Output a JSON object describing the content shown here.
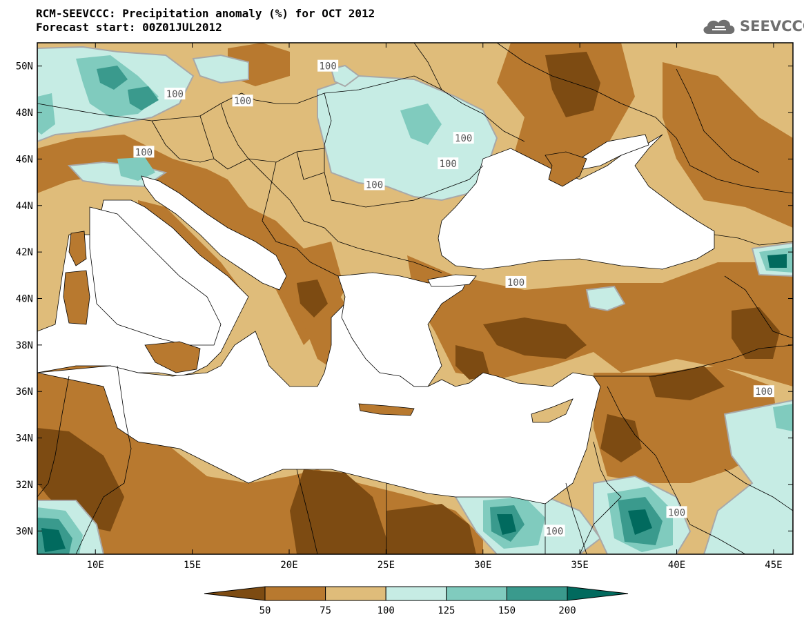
{
  "header": {
    "title_line1": "RCM-SEEVCCC: Precipitation anomaly (%) for OCT 2012",
    "title_line2": "Forecast start: 00Z01JUL2012",
    "logo_text": "SEEVCCC"
  },
  "map": {
    "extent": {
      "lon_min": 7,
      "lon_max": 46,
      "lat_min": 29,
      "lat_max": 51
    },
    "lat_ticks": [
      {
        "value": 50,
        "label": "50N"
      },
      {
        "value": 48,
        "label": "48N"
      },
      {
        "value": 46,
        "label": "46N"
      },
      {
        "value": 44,
        "label": "44N"
      },
      {
        "value": 42,
        "label": "42N"
      },
      {
        "value": 40,
        "label": "40N"
      },
      {
        "value": 38,
        "label": "38N"
      },
      {
        "value": 36,
        "label": "36N"
      },
      {
        "value": 34,
        "label": "34N"
      },
      {
        "value": 32,
        "label": "32N"
      },
      {
        "value": 30,
        "label": "30N"
      }
    ],
    "lon_ticks": [
      {
        "value": 10,
        "label": "10E"
      },
      {
        "value": 15,
        "label": "15E"
      },
      {
        "value": 20,
        "label": "20E"
      },
      {
        "value": 25,
        "label": "25E"
      },
      {
        "value": 30,
        "label": "30E"
      },
      {
        "value": 35,
        "label": "35E"
      },
      {
        "value": 40,
        "label": "40E"
      },
      {
        "value": 45,
        "label": "45E"
      }
    ],
    "contour_labels": [
      {
        "text": "100",
        "lon": 22.0,
        "lat": 50.0
      },
      {
        "text": "100",
        "lon": 14.1,
        "lat": 48.8
      },
      {
        "text": "100",
        "lon": 17.6,
        "lat": 48.5
      },
      {
        "text": "100",
        "lon": 12.5,
        "lat": 46.3
      },
      {
        "text": "100",
        "lon": 29.0,
        "lat": 46.9
      },
      {
        "text": "100",
        "lon": 28.2,
        "lat": 45.8
      },
      {
        "text": "100",
        "lon": 24.4,
        "lat": 44.9
      },
      {
        "text": "100",
        "lon": 31.7,
        "lat": 40.7
      },
      {
        "text": "100",
        "lon": 44.5,
        "lat": 36.0
      },
      {
        "text": "100",
        "lon": 40.0,
        "lat": 30.8
      },
      {
        "text": "100",
        "lon": 33.7,
        "lat": 30.0
      }
    ]
  },
  "legend": {
    "colors": [
      "#7d4b12",
      "#b8792f",
      "#dfbc7a",
      "#c6ece4",
      "#80cbbe",
      "#3a9a8d",
      "#016a5e"
    ],
    "labels": [
      "50",
      "75",
      "100",
      "125",
      "150",
      "200"
    ]
  },
  "colors": {
    "sea": "#ffffff",
    "land_base": "#dfbc7a",
    "border": "#000000",
    "contour_100": "#a8a8a8"
  }
}
